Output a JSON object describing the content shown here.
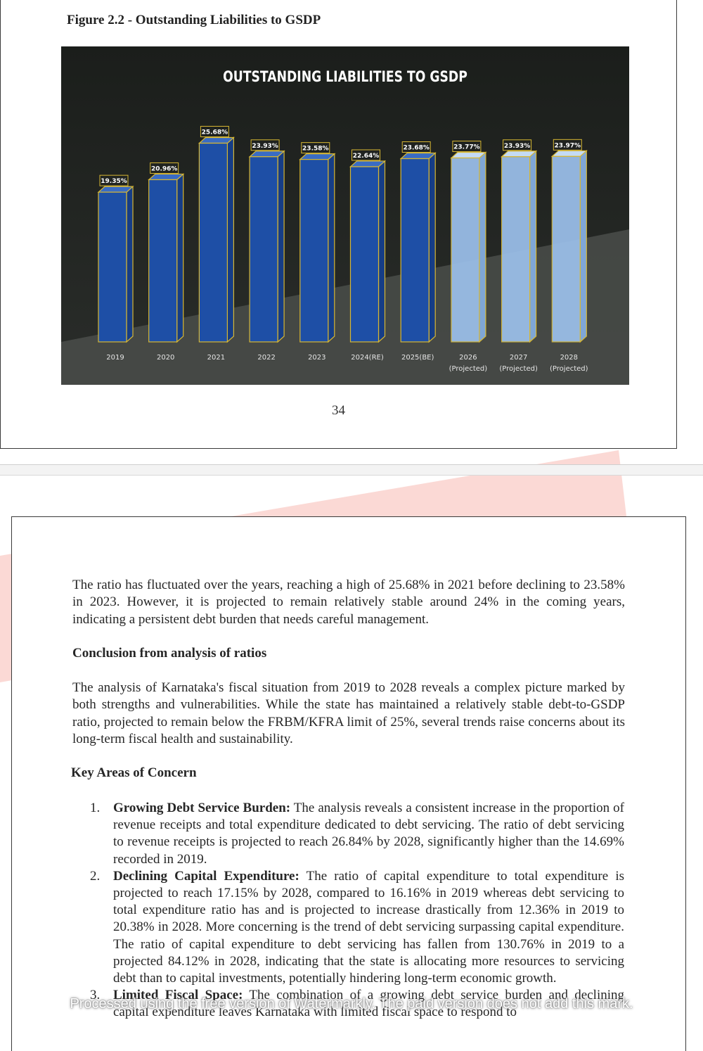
{
  "figure": {
    "caption": "Figure 2.2 - Outstanding Liabilities to GSDP",
    "page_number": "34"
  },
  "chart_data": {
    "type": "bar",
    "title": "OUTSTANDING LIABILITIES TO GSDP",
    "categories": [
      [
        "2019"
      ],
      [
        "2020"
      ],
      [
        "2021"
      ],
      [
        "2022"
      ],
      [
        "2023"
      ],
      [
        "2024(RE)"
      ],
      [
        "2025(BE)"
      ],
      [
        "2026",
        "(Projected)"
      ],
      [
        "2027",
        "(Projected)"
      ],
      [
        "2028",
        "(Projected)"
      ]
    ],
    "values": [
      19.35,
      20.96,
      25.68,
      23.93,
      23.58,
      22.64,
      23.68,
      23.77,
      23.93,
      23.97
    ],
    "labels": [
      "19.35%",
      "20.96%",
      "25.68%",
      "23.93%",
      "23.58%",
      "22.64%",
      "23.68%",
      "23.77%",
      "23.93%",
      "23.97%"
    ],
    "projected": [
      false,
      false,
      false,
      false,
      false,
      false,
      false,
      true,
      true,
      true
    ],
    "ylim": [
      0,
      26
    ],
    "colors": {
      "background": "#20231f",
      "actual_bar": "#1e4fa6",
      "projected_bar": "#9cc1ec",
      "outline": "#d7b733",
      "title": "#ffffff"
    }
  },
  "body": {
    "paragraph1": "The ratio has fluctuated over the years, reaching a high of 25.68% in 2021 before declining to 23.58% in 2023. However, it is projected to remain relatively stable around 24% in the coming years, indicating a persistent debt burden that needs careful management.",
    "heading1": "Conclusion from analysis of ratios",
    "paragraph2": "The analysis of Karnataka's fiscal situation from 2019 to 2028 reveals a complex picture marked by both strengths and vulnerabilities. While the state has maintained a relatively stable debt-to-GSDP ratio, projected to remain below the FRBM/KFRA limit of 25%, several trends raise concerns about its long-term fiscal health and sustainability.",
    "heading2": "Key Areas of Concern",
    "list": [
      {
        "number": "1.",
        "title": "Growing Debt Service Burden:",
        "text": " The analysis reveals a consistent increase in the proportion of revenue receipts and total expenditure dedicated to debt servicing. The ratio of debt servicing to revenue receipts is projected to reach 26.84% by 2028, significantly higher than the 14.69% recorded in 2019."
      },
      {
        "number": "2.",
        "title": "Declining Capital Expenditure:",
        "text": " The ratio of capital expenditure to total expenditure is projected to reach 17.15% by 2028, compared to 16.16% in 2019 whereas debt servicing to total expenditure ratio has and is projected to increase drastically from 12.36% in 2019 to 20.38% in 2028. More concerning is the trend of debt servicing surpassing capital expenditure. The ratio of capital expenditure to debt servicing has fallen from 130.76% in 2019 to a projected 84.12% in 2028, indicating that the state is allocating more resources to servicing debt than to capital investments, potentially hindering long-term economic growth."
      },
      {
        "number": "3.",
        "title": "Limited Fiscal Space:",
        "text": " The combination of a growing debt service burden and declining capital expenditure leaves Karnataka with limited fiscal space to respond to"
      }
    ]
  },
  "watermark": {
    "text": "Processed using the free version of Watermarkly. The paid version does not add this mark.",
    "colors": [
      "#f6a59a",
      "#8e9ee8"
    ]
  }
}
